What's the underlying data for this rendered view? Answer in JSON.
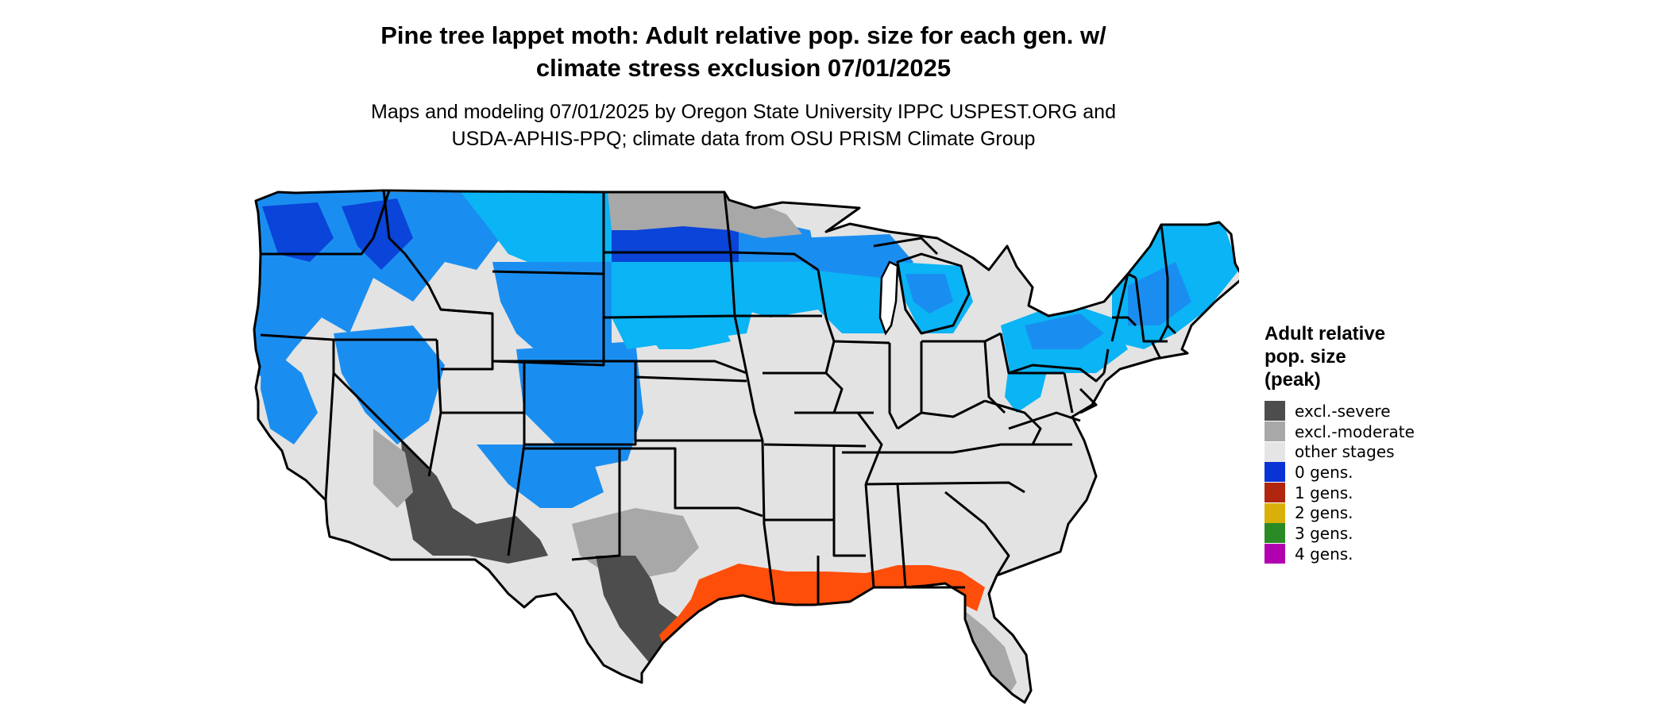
{
  "title_line1": "Pine tree lappet moth: Adult relative pop. size for each gen. w/",
  "title_line2": "climate stress exclusion 07/01/2025",
  "subtitle_line1": "Maps and modeling 07/01/2025 by Oregon State University IPPC USPEST.ORG and",
  "subtitle_line2": "USDA-APHIS-PPQ; climate data from OSU PRISM Climate Group",
  "legend": {
    "title_lines": [
      "Adult relative",
      "pop. size",
      "(peak)"
    ],
    "items": [
      {
        "label": "excl.-severe",
        "color": "#4d4d4d"
      },
      {
        "label": "excl.-moderate",
        "color": "#a8a8a8"
      },
      {
        "label": "other stages",
        "color": "#e5e5e5"
      },
      {
        "label": "0 gens.",
        "color": "#0a33d6"
      },
      {
        "label": "1 gens.",
        "color": "#b0260f"
      },
      {
        "label": "2 gens.",
        "color": "#d9b00a"
      },
      {
        "label": "3 gens.",
        "color": "#2a8a26"
      },
      {
        "label": "4 gens.",
        "color": "#b000b0"
      }
    ]
  },
  "map": {
    "region": "Contiguous United States",
    "colors": {
      "land_base": "#e3e3e3",
      "state_border": "#000000",
      "zero_gens_light": "#0ab4f5",
      "zero_gens_mid": "#1a8ef0",
      "zero_gens_dark": "#0a44d8",
      "one_gen_orange": "#ff4e0a",
      "excl_severe": "#4d4d4d",
      "excl_moderate": "#a8a8a8"
    }
  }
}
